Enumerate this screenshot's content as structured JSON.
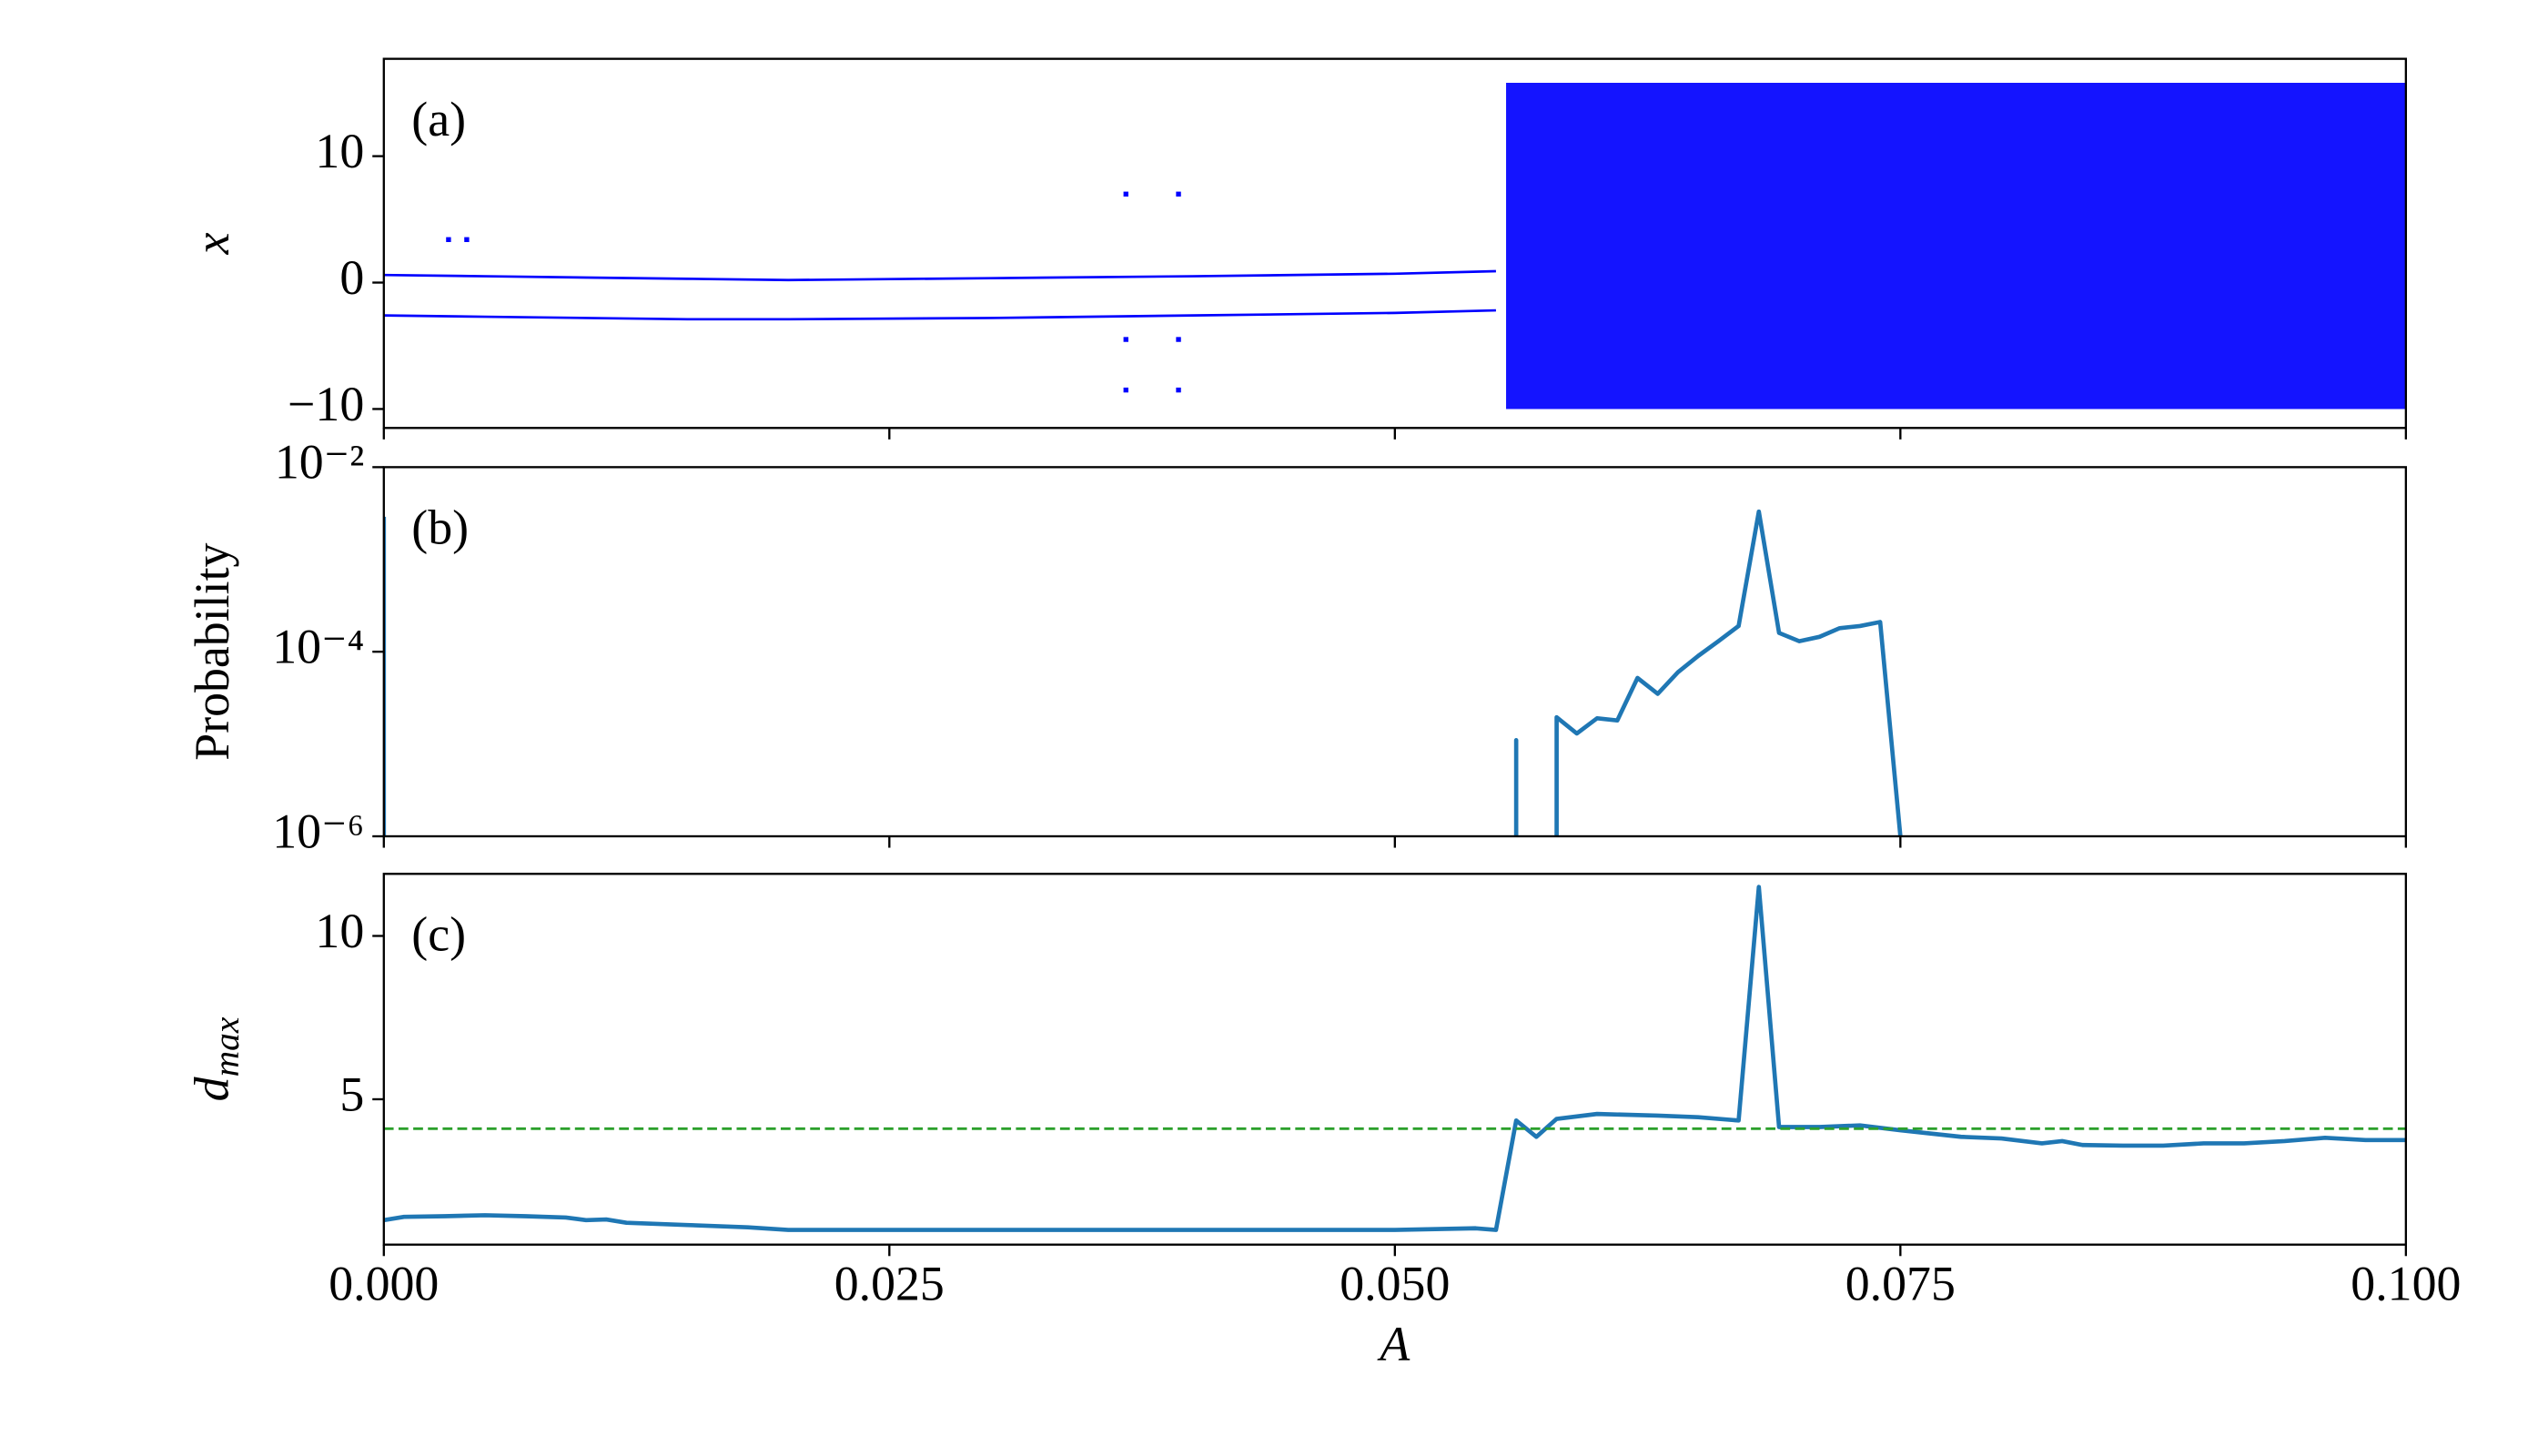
{
  "chart_data": [
    {
      "type": "scatter",
      "label": "(a)",
      "ylabel": "x",
      "ylabel_italic": true,
      "xlim": [
        0,
        0.1
      ],
      "ylim": [
        -11.5,
        17.7
      ],
      "yticks": [
        {
          "value": -10,
          "label": "−10"
        },
        0,
        10
      ],
      "series": [
        {
          "style": "band",
          "color": "#0000ff",
          "x": [
            0.0555,
            0.1
          ],
          "values": [
            15.8,
            15.8
          ],
          "lower": [
            -10,
            -10
          ]
        },
        {
          "style": "line",
          "color": "#0000ff",
          "x": [
            0,
            0.005,
            0.01,
            0.015,
            0.02,
            0.03,
            0.04,
            0.05,
            0.055
          ],
          "values": [
            0.6,
            0.5,
            0.4,
            0.3,
            0.2,
            0.35,
            0.5,
            0.7,
            0.9
          ]
        },
        {
          "style": "line",
          "color": "#0000ff",
          "x": [
            0,
            0.005,
            0.01,
            0.015,
            0.02,
            0.03,
            0.04,
            0.05,
            0.055
          ],
          "values": [
            -2.6,
            -2.7,
            -2.8,
            -2.9,
            -2.9,
            -2.8,
            -2.6,
            -2.4,
            -2.2
          ]
        },
        {
          "style": "points",
          "color": "#0000ff",
          "x": [
            0.0032,
            0.0041,
            0.0367,
            0.0393,
            0.0367,
            0.0393,
            0.0367,
            0.0393
          ],
          "values": [
            3.4,
            3.4,
            7,
            7,
            -4.5,
            -4.5,
            -8.5,
            -8.5
          ]
        }
      ]
    },
    {
      "type": "line",
      "label": "(b)",
      "ylabel": "Probability",
      "ylabel_italic": false,
      "log_y": true,
      "xlim": [
        0,
        0.1
      ],
      "ylim": [
        1e-06,
        0.01
      ],
      "yticks": [
        {
          "value": 1e-06,
          "label": "10⁻⁶"
        },
        {
          "value": 0.0001,
          "label": "10⁻⁴"
        },
        {
          "value": 0.01,
          "label": "10⁻²"
        }
      ],
      "series": [
        {
          "style": "line",
          "color": "#1f77b4",
          "x": [
            0,
            0
          ],
          "values": [
            0.0029,
            1e-06
          ]
        },
        {
          "style": "line",
          "color": "#1f77b4",
          "x": [
            0.056,
            0.056,
            0.056
          ],
          "values": [
            1e-06,
            1.1e-05,
            1e-06
          ]
        },
        {
          "style": "line",
          "color": "#1f77b4",
          "x": [
            0.058,
            0.058,
            0.059,
            0.06,
            0.061,
            0.062,
            0.063,
            0.064,
            0.065,
            0.066,
            0.067,
            0.068,
            0.069,
            0.07,
            0.071,
            0.072,
            0.073,
            0.074,
            0.075
          ],
          "values": [
            1e-06,
            1.95e-05,
            1.3e-05,
            1.9e-05,
            1.8e-05,
            5.2e-05,
            3.5e-05,
            6e-05,
            9e-05,
            0.00013,
            0.00019,
            0.0033,
            0.00016,
            0.00013,
            0.000145,
            0.00018,
            0.00019,
            0.00021,
            1e-06
          ]
        }
      ]
    },
    {
      "type": "line",
      "label": "(c)",
      "ylabel": {
        "text": "d",
        "subscript": "max"
      },
      "ylabel_italic": true,
      "xlim": [
        0,
        0.1
      ],
      "ylim": [
        0.55,
        11.9
      ],
      "yticks": [
        5,
        10
      ],
      "xlabel": "A",
      "xticks": [
        {
          "value": 0,
          "label": "0.000"
        },
        {
          "value": 0.025,
          "label": "0.025"
        },
        {
          "value": 0.05,
          "label": "0.050"
        },
        {
          "value": 0.075,
          "label": "0.075"
        },
        {
          "value": 0.1,
          "label": "0.100"
        }
      ],
      "hline": {
        "value": 4.1,
        "color": "#2ca02c"
      },
      "series": [
        {
          "style": "line",
          "color": "#1f77b4",
          "x": [
            0,
            0.001,
            0.003,
            0.005,
            0.007,
            0.009,
            0.01,
            0.011,
            0.012,
            0.015,
            0.018,
            0.02,
            0.03,
            0.04,
            0.05,
            0.054,
            0.055,
            0.056,
            0.057,
            0.058,
            0.06,
            0.063,
            0.065,
            0.067,
            0.068,
            0.069,
            0.071,
            0.073,
            0.075,
            0.078,
            0.08,
            0.082,
            0.083,
            0.084,
            0.086,
            0.088,
            0.09,
            0.092,
            0.094,
            0.096,
            0.098,
            0.1
          ],
          "values": [
            1.3,
            1.4,
            1.42,
            1.45,
            1.42,
            1.38,
            1.3,
            1.32,
            1.22,
            1.15,
            1.08,
            1.0,
            1.0,
            1.0,
            1.0,
            1.05,
            1.0,
            4.35,
            3.85,
            4.4,
            4.55,
            4.5,
            4.45,
            4.35,
            11.5,
            4.15,
            4.15,
            4.2,
            4.05,
            3.85,
            3.8,
            3.65,
            3.72,
            3.6,
            3.58,
            3.58,
            3.65,
            3.65,
            3.72,
            3.82,
            3.75,
            3.75
          ]
        }
      ]
    }
  ]
}
